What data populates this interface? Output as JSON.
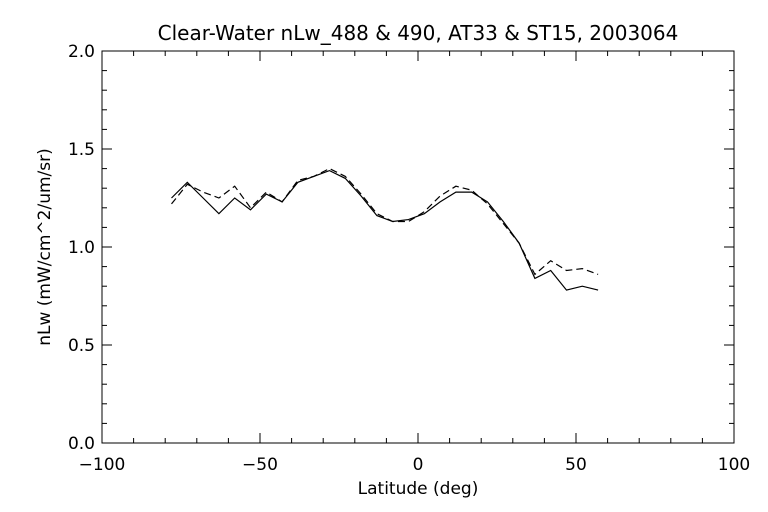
{
  "chart_data": {
    "type": "line",
    "title": "Clear-Water nLw_488 & 490, AT33 & ST15, 2003064",
    "xlabel": "Latitude (deg)",
    "ylabel": "nLw (mW/cm^2/um/sr)",
    "xlim": [
      -100,
      100
    ],
    "ylim": [
      0.0,
      2.0
    ],
    "xticks": [
      -100,
      -50,
      0,
      50,
      100
    ],
    "xtick_labels": [
      "−100",
      "−50",
      "0",
      "50",
      "100"
    ],
    "yticks": [
      0.0,
      0.5,
      1.0,
      1.5,
      2.0
    ],
    "ytick_labels": [
      "0.0",
      "0.5",
      "1.0",
      "1.5",
      "2.0"
    ],
    "grid": false,
    "legend": "none",
    "series": [
      {
        "style": "solid",
        "color": "#000000",
        "x": [
          -78,
          -73,
          -68,
          -63,
          -58,
          -53,
          -48,
          -43,
          -38,
          -33,
          -28,
          -23,
          -18,
          -13,
          -8,
          -3,
          2,
          7,
          12,
          17,
          22,
          27,
          32,
          37,
          42,
          47,
          52,
          57
        ],
        "y": [
          1.25,
          1.33,
          1.25,
          1.17,
          1.25,
          1.19,
          1.27,
          1.23,
          1.33,
          1.36,
          1.39,
          1.35,
          1.26,
          1.16,
          1.13,
          1.14,
          1.17,
          1.23,
          1.28,
          1.28,
          1.23,
          1.13,
          1.02,
          0.84,
          0.88,
          0.78,
          0.8,
          0.78
        ]
      },
      {
        "style": "dashed",
        "color": "#000000",
        "x": [
          -78,
          -73,
          -68,
          -63,
          -58,
          -53,
          -48,
          -43,
          -38,
          -33,
          -28,
          -23,
          -18,
          -13,
          -8,
          -3,
          2,
          7,
          12,
          17,
          22,
          27,
          32,
          37,
          42,
          47,
          52,
          57
        ],
        "y": [
          1.22,
          1.32,
          1.28,
          1.25,
          1.31,
          1.2,
          1.28,
          1.23,
          1.34,
          1.36,
          1.4,
          1.36,
          1.27,
          1.17,
          1.13,
          1.13,
          1.18,
          1.26,
          1.31,
          1.29,
          1.22,
          1.12,
          1.02,
          0.86,
          0.93,
          0.88,
          0.89,
          0.86
        ]
      }
    ]
  }
}
